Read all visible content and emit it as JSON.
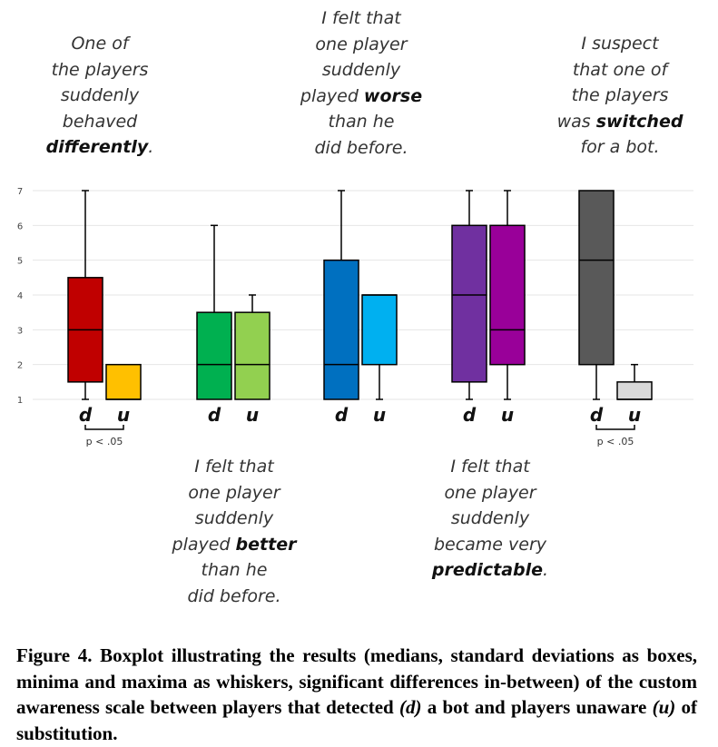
{
  "chart_data": {
    "type": "boxplot",
    "ylim": [
      1,
      7
    ],
    "yticks": [
      "1",
      "2",
      "3",
      "4",
      "5",
      "6",
      "7"
    ],
    "grid": true,
    "groups": [
      {
        "annotation": {
          "lines": [
            "One of",
            "the players",
            "suddenly",
            "behaved"
          ],
          "bold": "differently",
          "tail": "."
        },
        "significance": "p < .05",
        "boxes": [
          {
            "label": "d",
            "color": "#c00000",
            "min": 1,
            "q1": 1.5,
            "median": 3,
            "q3": 4.5,
            "max": 7
          },
          {
            "label": "u",
            "color": "#ffc000",
            "min": 1,
            "q1": 1,
            "median": 1,
            "q3": 2,
            "max": 2
          }
        ]
      },
      {
        "annotation": {
          "lines": [
            "I felt that",
            "one player",
            "suddenly"
          ],
          "prefix": "played ",
          "bold": "better",
          "tail_lines": [
            "than he",
            "did before."
          ]
        },
        "significance": "",
        "boxes": [
          {
            "label": "d",
            "color": "#00b050",
            "min": 1,
            "q1": 1,
            "median": 2,
            "q3": 3.5,
            "max": 6
          },
          {
            "label": "u",
            "color": "#92d050",
            "min": 1,
            "q1": 1,
            "median": 2,
            "q3": 3.5,
            "max": 4
          }
        ]
      },
      {
        "annotation": {
          "lines": [
            "I felt that",
            "one player",
            "suddenly"
          ],
          "prefix": "played ",
          "bold": "worse",
          "tail_lines": [
            "than he",
            "did before."
          ]
        },
        "significance": "",
        "boxes": [
          {
            "label": "d",
            "color": "#0070c0",
            "min": 1,
            "q1": 1,
            "median": 2,
            "q3": 5,
            "max": 7
          },
          {
            "label": "u",
            "color": "#00b0f0",
            "min": 1,
            "q1": 2,
            "median": 4,
            "q3": 4,
            "max": 4
          }
        ]
      },
      {
        "annotation": {
          "lines": [
            "I felt that",
            "one player",
            "suddenly",
            "became very"
          ],
          "bold": "predictable",
          "tail": "."
        },
        "significance": "",
        "boxes": [
          {
            "label": "d",
            "color": "#7030a0",
            "min": 1,
            "q1": 1.5,
            "median": 4,
            "q3": 6,
            "max": 7
          },
          {
            "label": "u",
            "color": "#990099",
            "min": 1,
            "q1": 2,
            "median": 3,
            "q3": 6,
            "max": 7
          }
        ]
      },
      {
        "annotation": {
          "lines": [
            "I suspect",
            "that one of",
            "the players"
          ],
          "prefix": "was ",
          "bold": "switched",
          "tail_lines": [
            "for a bot."
          ]
        },
        "significance": "p < .05",
        "boxes": [
          {
            "label": "d",
            "color": "#595959",
            "min": 1,
            "q1": 2,
            "median": 5,
            "q3": 7,
            "max": 7
          },
          {
            "label": "u",
            "color": "#d9d9d9",
            "min": 1,
            "q1": 1,
            "median": 1,
            "q3": 1.5,
            "max": 2
          }
        ]
      }
    ]
  },
  "caption": {
    "lead": "Figure 4. Boxplot illustrating the results (medians, standard deviations as boxes, minima and maxima as whiskers, significant differences in-between) of the custom awareness scale between players that detected ",
    "d": "(d)",
    "middle": " a bot and players unaware ",
    "u": "(u)",
    "tail": " of substitution."
  }
}
